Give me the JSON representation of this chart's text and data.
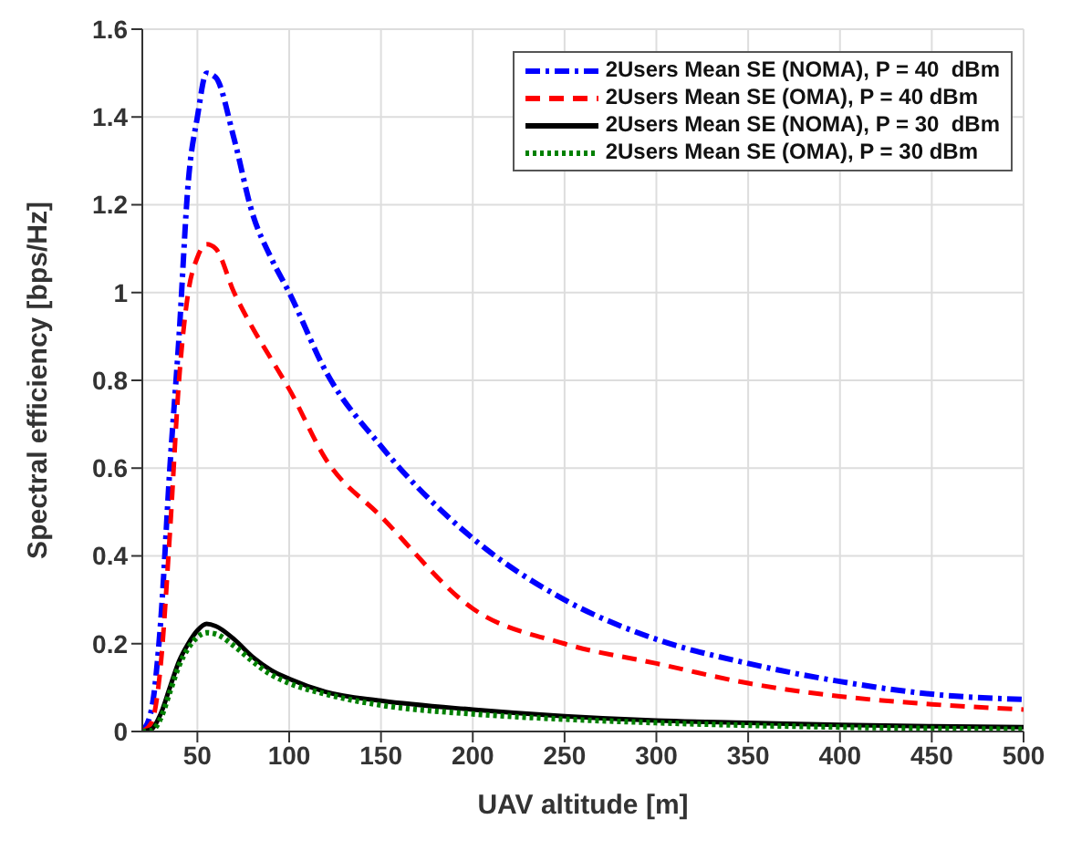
{
  "chart_data": {
    "type": "line",
    "xlabel": "UAV altitude [m]",
    "ylabel": "Spectral efficiency [bps/Hz]",
    "x": [
      20,
      25,
      30,
      35,
      40,
      45,
      50,
      55,
      60,
      70,
      80,
      90,
      100,
      120,
      150,
      200,
      250,
      300,
      350,
      400,
      450,
      500
    ],
    "xlim": [
      20,
      500
    ],
    "xticks": [
      50,
      100,
      150,
      200,
      250,
      300,
      350,
      400,
      450,
      500
    ],
    "ylim": [
      0,
      1.6
    ],
    "yticks": [
      0,
      0.2,
      0.4,
      0.6,
      0.8,
      1,
      1.2,
      1.4,
      1.6
    ],
    "grid": true,
    "legend": "top right",
    "marker": "none",
    "series": [
      {
        "name": "2Users Mean SE (NOMA), P = 40  dBm",
        "color": "#0000ff",
        "line_style": "dashdot",
        "values": [
          0,
          0.05,
          0.25,
          0.6,
          0.9,
          1.25,
          1.4,
          1.5,
          1.49,
          1.35,
          1.18,
          1.08,
          1.0,
          0.82,
          0.65,
          0.44,
          0.3,
          0.21,
          0.155,
          0.114,
          0.085,
          0.073
        ]
      },
      {
        "name": "2Users Mean SE (OMA), P = 40 dBm",
        "color": "#ff0000",
        "line_style": "dashed",
        "values": [
          0,
          0.02,
          0.15,
          0.45,
          0.8,
          1.0,
          1.08,
          1.11,
          1.1,
          1.0,
          0.92,
          0.85,
          0.78,
          0.62,
          0.49,
          0.28,
          0.2,
          0.155,
          0.11,
          0.08,
          0.062,
          0.05
        ]
      },
      {
        "name": "2Users Mean SE (NOMA), P = 30  dBm",
        "color": "#000000",
        "line_style": "solid",
        "values": [
          0,
          0.005,
          0.04,
          0.1,
          0.16,
          0.2,
          0.23,
          0.245,
          0.24,
          0.21,
          0.17,
          0.14,
          0.12,
          0.09,
          0.07,
          0.05,
          0.035,
          0.025,
          0.02,
          0.015,
          0.012,
          0.01
        ]
      },
      {
        "name": "2Users Mean SE (OMA), P = 30 dBm",
        "color": "#008000",
        "line_style": "dotted",
        "values": [
          0,
          0.002,
          0.03,
          0.09,
          0.15,
          0.19,
          0.215,
          0.225,
          0.222,
          0.195,
          0.16,
          0.13,
          0.11,
          0.085,
          0.06,
          0.04,
          0.028,
          0.02,
          0.014,
          0.01,
          0.007,
          0.005
        ]
      }
    ]
  }
}
